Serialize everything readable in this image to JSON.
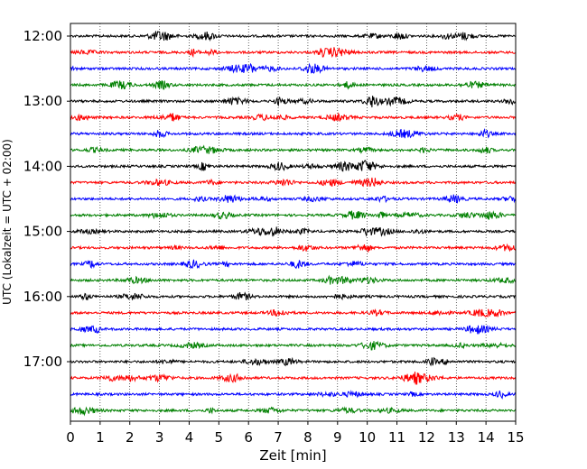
{
  "chart_data": {
    "type": "line",
    "title": "",
    "xlabel": "Zeit  [min]",
    "ylabel": "UTC (Lokalzeit = UTC + 02:00)",
    "xlim": [
      0,
      15
    ],
    "x_ticks": [
      0,
      1,
      2,
      3,
      4,
      5,
      6,
      7,
      8,
      9,
      10,
      11,
      12,
      13,
      14,
      15
    ],
    "y_tick_labels": [
      "12:00",
      "13:00",
      "14:00",
      "15:00",
      "16:00",
      "17:00"
    ],
    "row_interval_min": 15,
    "rows_per_hour": 4,
    "row_count": 24,
    "row_colors": [
      "#000000",
      "#ff0000",
      "#0000ff",
      "#008000"
    ],
    "vertical_grid": true,
    "grid_style": "dotted"
  }
}
